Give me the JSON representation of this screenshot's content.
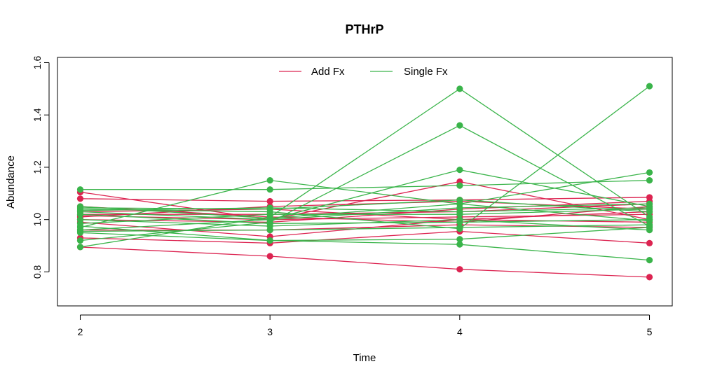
{
  "chart_data": {
    "type": "line",
    "title": "PTHrP",
    "xlabel": "Time",
    "ylabel": "Abundance",
    "x": [
      2,
      3,
      4,
      5
    ],
    "x_tick_labels": [
      "2",
      "3",
      "4",
      "5"
    ],
    "xlim": [
      1.88,
      5.12
    ],
    "ylim": [
      0.67,
      1.62
    ],
    "y_ticks": [
      0.8,
      1.0,
      1.2,
      1.4,
      1.6
    ],
    "y_tick_labels": [
      "0.8",
      "1.0",
      "1.2",
      "1.4",
      "1.6"
    ],
    "legend": {
      "position": "top",
      "entries": [
        {
          "label": "Add Fx",
          "color": "#DC2451"
        },
        {
          "label": "Single Fx",
          "color": "#3AB44A"
        }
      ]
    },
    "groups": [
      {
        "label": "Add Fx",
        "color": "#DC2451",
        "lines": [
          [
            1.105,
            1.0,
            1.145,
            1.0
          ],
          [
            1.08,
            1.07,
            1.075,
            1.085
          ],
          [
            1.03,
            1.04,
            1.0,
            0.99
          ],
          [
            1.02,
            1.02,
            1.03,
            1.06
          ],
          [
            1.01,
            1.05,
            1.07,
            1.04
          ],
          [
            1.0,
            0.99,
            1.04,
            1.07
          ],
          [
            0.96,
            0.96,
            0.98,
            0.97
          ],
          [
            0.93,
            0.91,
            0.955,
            0.91
          ],
          [
            0.895,
            0.86,
            0.81,
            0.78
          ],
          [
            1.05,
            1.01,
            0.99,
            1.05
          ],
          [
            0.99,
            0.935,
            1.0,
            1.03
          ],
          [
            1.015,
            1.0,
            1.01,
            1.02
          ]
        ]
      },
      {
        "label": "Single Fx",
        "color": "#3AB44A",
        "lines": [
          [
            1.115,
            1.115,
            1.13,
            1.15
          ],
          [
            0.97,
            1.15,
            1.06,
            0.995
          ],
          [
            0.895,
            1.01,
            1.5,
            1.01
          ],
          [
            0.92,
            0.99,
            1.36,
            0.975
          ],
          [
            0.96,
            1.0,
            1.19,
            1.05
          ],
          [
            1.04,
            1.03,
            0.965,
            1.51
          ],
          [
            1.05,
            1.005,
            1.06,
            1.18
          ],
          [
            0.95,
            0.92,
            0.925,
            0.97
          ],
          [
            0.975,
            0.92,
            0.905,
            0.845
          ],
          [
            1.03,
            1.0,
            1.045,
            1.06
          ],
          [
            1.0,
            0.975,
            1.0,
            0.96
          ],
          [
            1.045,
            1.04,
            1.075,
            1.03
          ],
          [
            1.02,
            0.985,
            0.99,
            1.0
          ],
          [
            0.985,
            1.02,
            1.02,
            1.04
          ],
          [
            1.035,
            1.045,
            1.03,
            1.045
          ],
          [
            0.955,
            0.96,
            0.97,
            0.98
          ]
        ]
      }
    ]
  }
}
